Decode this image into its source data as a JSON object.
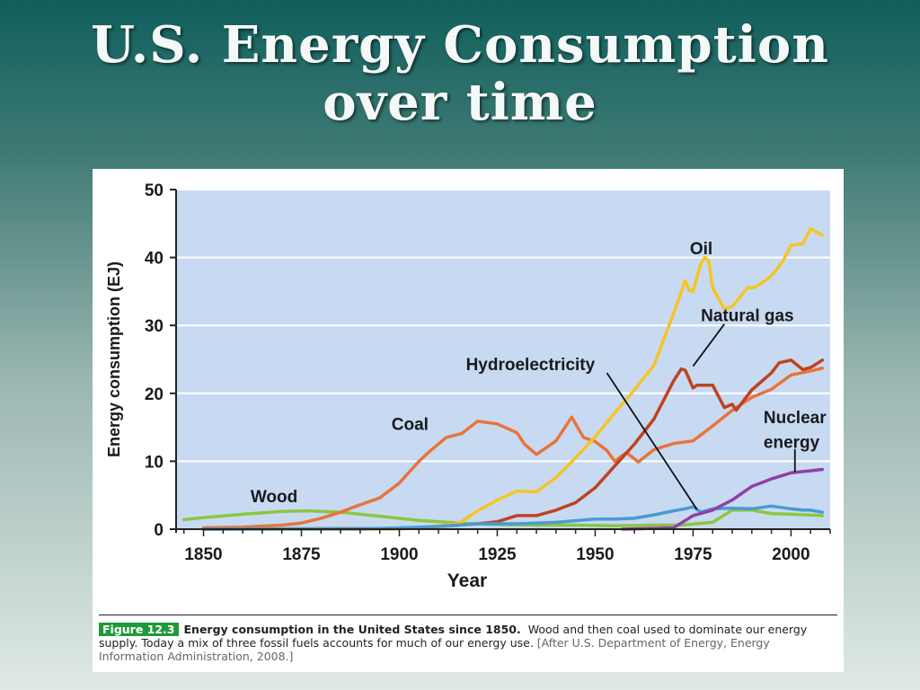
{
  "title": {
    "line1": "U.S. Energy Consumption",
    "line2": "over time"
  },
  "colors": {
    "plot_bg": "#c7daf2",
    "wood": "#8cc63f",
    "coal": "#e8743b",
    "oil": "#f5c525",
    "natural_gas": "#c0421f",
    "hydroelectricity": "#4a9bd1",
    "nuclear": "#9040a6",
    "figure_tag": "#1f9a3a"
  },
  "chart_data": {
    "type": "line",
    "xlabel": "Year",
    "ylabel": "Energy consumption (EJ)",
    "xlim": [
      1843,
      2010
    ],
    "ylim": [
      0,
      50
    ],
    "xticks": [
      1850,
      1875,
      1900,
      1925,
      1950,
      1975,
      2000
    ],
    "yticks": [
      0,
      10,
      20,
      30,
      40,
      50
    ],
    "grid": "horizontal",
    "series": [
      {
        "name": "Wood",
        "color_key": "wood",
        "x": [
          1845,
          1850,
          1860,
          1870,
          1877,
          1885,
          1895,
          1905,
          1915,
          1925,
          1935,
          1945,
          1955,
          1965,
          1972,
          1980,
          1985,
          1990,
          1995,
          2000,
          2008
        ],
        "y": [
          1.4,
          1.7,
          2.2,
          2.6,
          2.7,
          2.5,
          1.9,
          1.3,
          0.9,
          0.7,
          0.6,
          0.6,
          0.5,
          0.6,
          0.6,
          1.0,
          2.8,
          2.8,
          2.3,
          2.2,
          2.0
        ]
      },
      {
        "name": "Coal",
        "color_key": "coal",
        "x": [
          1850,
          1860,
          1870,
          1875,
          1880,
          1885,
          1890,
          1895,
          1900,
          1905,
          1908,
          1912,
          1916,
          1920,
          1925,
          1930,
          1932,
          1935,
          1940,
          1944,
          1947,
          1950,
          1953,
          1955,
          1958,
          1961,
          1965,
          1970,
          1975,
          1980,
          1985,
          1990,
          1995,
          2000,
          2005,
          2008
        ],
        "y": [
          0.2,
          0.3,
          0.6,
          0.9,
          1.6,
          2.5,
          3.6,
          4.6,
          6.8,
          10.0,
          11.6,
          13.5,
          14.1,
          15.9,
          15.5,
          14.2,
          12.5,
          11.0,
          13.0,
          16.5,
          13.5,
          12.9,
          11.6,
          10.0,
          11.3,
          9.9,
          11.7,
          12.6,
          13.0,
          15.2,
          17.5,
          19.4,
          20.6,
          22.7,
          23.3,
          23.7
        ]
      },
      {
        "name": "Oil",
        "color_key": "oil",
        "x": [
          1850,
          1880,
          1900,
          1910,
          1915,
          1920,
          1925,
          1930,
          1935,
          1940,
          1945,
          1950,
          1955,
          1960,
          1965,
          1970,
          1973,
          1974,
          1975,
          1977,
          1978,
          1979,
          1980,
          1983,
          1985,
          1989,
          1990,
          1992,
          1995,
          1998,
          2000,
          2003,
          2005,
          2008
        ],
        "y": [
          0,
          0,
          0,
          0.5,
          0.8,
          2.7,
          4.3,
          5.6,
          5.5,
          7.6,
          10.5,
          13.6,
          17.1,
          20.5,
          24.1,
          31.7,
          36.6,
          35.2,
          35.0,
          39.1,
          40.0,
          39.5,
          35.5,
          32.4,
          32.8,
          35.6,
          35.5,
          36.0,
          37.3,
          39.5,
          41.8,
          42.0,
          44.2,
          43.3
        ]
      },
      {
        "name": "Natural gas",
        "color_key": "natural_gas",
        "x": [
          1850,
          1900,
          1910,
          1920,
          1925,
          1930,
          1935,
          1940,
          1945,
          1950,
          1955,
          1960,
          1965,
          1970,
          1972,
          1973,
          1975,
          1976,
          1980,
          1983,
          1985,
          1986,
          1990,
          1995,
          1997,
          2000,
          2003,
          2005,
          2008
        ],
        "y": [
          0,
          0.1,
          0.4,
          0.8,
          1.1,
          2.0,
          2.0,
          2.8,
          3.9,
          6.1,
          9.3,
          12.5,
          16.2,
          21.8,
          23.6,
          23.4,
          20.8,
          21.2,
          21.2,
          17.9,
          18.4,
          17.5,
          20.5,
          23.0,
          24.5,
          24.9,
          23.5,
          23.8,
          24.9
        ]
      },
      {
        "name": "Hydroelectricity",
        "color_key": "hydroelectricity",
        "x": [
          1850,
          1890,
          1900,
          1910,
          1920,
          1930,
          1940,
          1950,
          1955,
          1960,
          1965,
          1970,
          1973,
          1975,
          1977,
          1980,
          1985,
          1990,
          1995,
          2000,
          2003,
          2005,
          2008
        ],
        "y": [
          0,
          0.05,
          0.2,
          0.4,
          0.8,
          0.8,
          1.0,
          1.5,
          1.5,
          1.6,
          2.1,
          2.7,
          3.0,
          3.3,
          2.5,
          3.0,
          3.1,
          3.0,
          3.4,
          3.0,
          2.8,
          2.8,
          2.5
        ]
      },
      {
        "name": "Nuclear energy",
        "color_key": "nuclear",
        "x": [
          1957,
          1970,
          1975,
          1980,
          1985,
          1990,
          1995,
          2000,
          2005,
          2008
        ],
        "y": [
          0,
          0.2,
          2.0,
          2.8,
          4.3,
          6.3,
          7.4,
          8.3,
          8.6,
          8.8
        ]
      }
    ],
    "annotations": [
      {
        "text": "Oil",
        "series": "Oil"
      },
      {
        "text": "Natural gas",
        "series": "Natural gas"
      },
      {
        "text": "Hydroelectricity",
        "series": "Hydroelectricity"
      },
      {
        "text": "Coal",
        "series": "Coal"
      },
      {
        "text": "Nuclear",
        "series": "Nuclear energy"
      },
      {
        "text": "energy",
        "series": "Nuclear energy"
      },
      {
        "text": "Wood",
        "series": "Wood"
      }
    ]
  },
  "caption": {
    "figure_label": "Figure 12.3",
    "bold_text": "Energy consumption in the United States since 1850.",
    "body_text": "Wood and then coal used to dominate our energy supply. Today a mix of three fossil fuels accounts for much of our energy use.",
    "source_text": "[After U.S. Department of Energy, Energy Information Administration, 2008.]"
  }
}
